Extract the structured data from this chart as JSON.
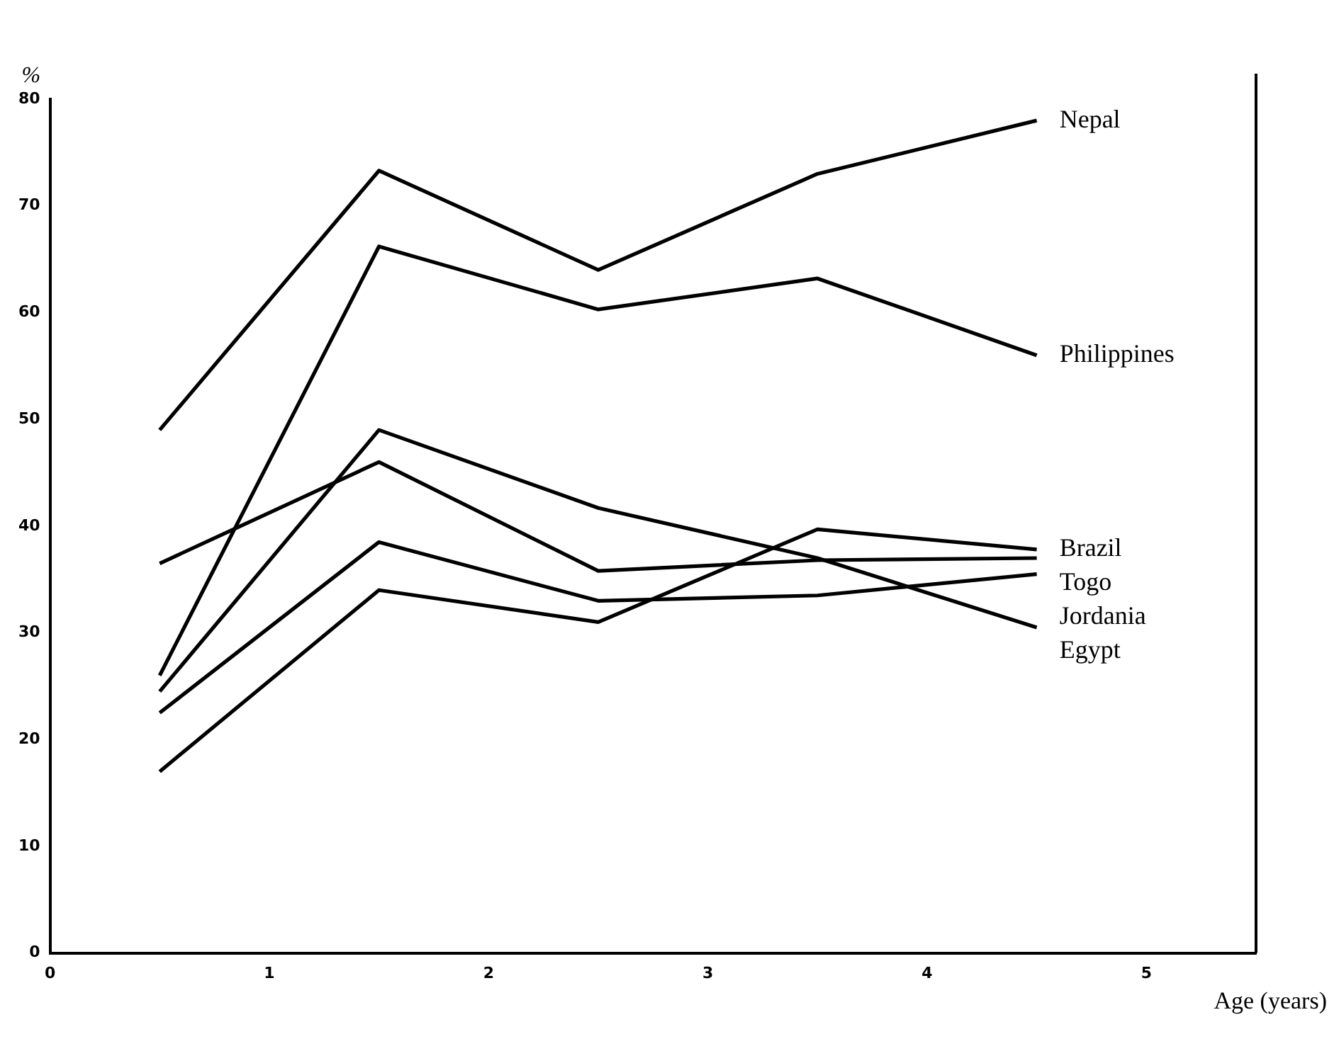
{
  "chart_data": {
    "type": "line",
    "xlabel": "Age (years)",
    "ylabel": "%",
    "x": [
      0.5,
      1.5,
      2.5,
      3.5,
      4.5
    ],
    "series": [
      {
        "name": "Nepal",
        "color": "#000000",
        "values": [
          49,
          73.3,
          64,
          73,
          78
        ]
      },
      {
        "name": "Philippines",
        "color": "#000000",
        "values": [
          26,
          66.2,
          60.3,
          63.2,
          56
        ]
      },
      {
        "name": "Brazil",
        "color": "#000000",
        "values": [
          17,
          34,
          31,
          39.7,
          37.8
        ]
      },
      {
        "name": "Togo",
        "color": "#000000",
        "values": [
          36.5,
          46,
          35.8,
          36.8,
          37
        ]
      },
      {
        "name": "Jordania",
        "color": "#000000",
        "values": [
          22.5,
          38.5,
          33,
          33.5,
          35.5
        ]
      },
      {
        "name": "Egypt",
        "color": "#000000",
        "values": [
          24.5,
          49,
          41.7,
          37,
          30.5
        ]
      }
    ],
    "xlim": [
      0,
      5.5
    ],
    "xticks": [
      0,
      1,
      2,
      3,
      4,
      5
    ],
    "ylim": [
      0,
      80
    ],
    "yticks": [
      0,
      10,
      20,
      30,
      40,
      50,
      60,
      70,
      80
    ],
    "grid": false,
    "legend": false,
    "marker": "none",
    "line_style": "solid"
  }
}
